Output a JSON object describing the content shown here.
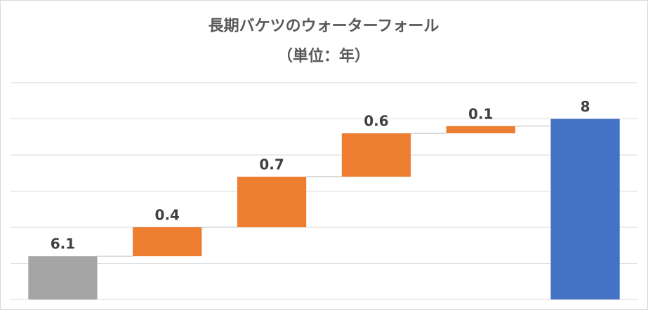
{
  "chart_data": {
    "type": "waterfall",
    "title": "長期バケツのウォーターフォール",
    "subtitle": "（単位：年）",
    "categories": [
      null,
      null,
      null,
      null,
      null,
      null
    ],
    "values": [
      6.1,
      0.4,
      0.7,
      0.6,
      0.1,
      8.0
    ],
    "kinds": [
      "start",
      "increase",
      "increase",
      "increase",
      "increase",
      "total"
    ],
    "colors": {
      "start": "#a5a5a5",
      "increase": "#ed7d31",
      "total": "#4472c4"
    },
    "ylim": [
      5.5,
      8.5
    ],
    "yticks": [
      5.5,
      6,
      6.5,
      7,
      7.5,
      8,
      8.5
    ],
    "ytick_labels": false,
    "grid": true,
    "connectors": true
  }
}
